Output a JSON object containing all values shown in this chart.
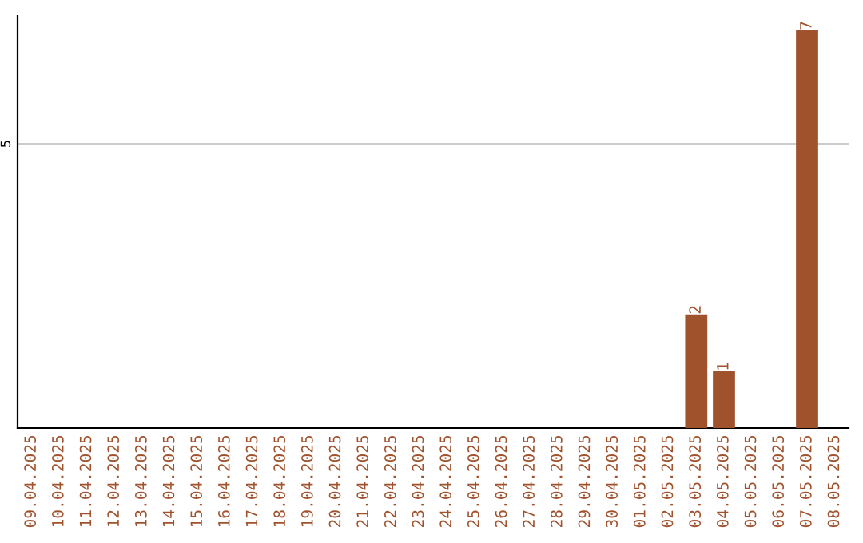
{
  "chart_data": {
    "type": "bar",
    "categories": [
      "09.04.2025",
      "10.04.2025",
      "11.04.2025",
      "12.04.2025",
      "13.04.2025",
      "14.04.2025",
      "15.04.2025",
      "16.04.2025",
      "17.04.2025",
      "18.04.2025",
      "19.04.2025",
      "20.04.2025",
      "21.04.2025",
      "22.04.2025",
      "23.04.2025",
      "24.04.2025",
      "25.04.2025",
      "26.04.2025",
      "27.04.2025",
      "28.04.2025",
      "29.04.2025",
      "30.04.2025",
      "01.05.2025",
      "02.05.2025",
      "03.05.2025",
      "04.05.2025",
      "05.05.2025",
      "06.05.2025",
      "07.05.2025",
      "08.05.2025"
    ],
    "values": [
      null,
      null,
      null,
      null,
      null,
      null,
      null,
      null,
      null,
      null,
      null,
      null,
      null,
      null,
      null,
      null,
      null,
      null,
      null,
      null,
      null,
      null,
      null,
      null,
      2,
      1,
      null,
      null,
      7,
      null
    ],
    "color": "#a0522d",
    "ylim": [
      0,
      7.25
    ],
    "yticks": [
      5
    ],
    "grid": "y",
    "data_labels": true
  }
}
